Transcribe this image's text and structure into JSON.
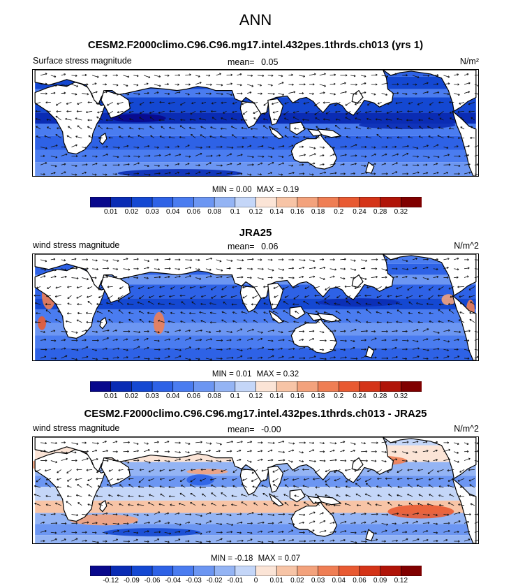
{
  "title": "ANN",
  "colors": {
    "land": "#ffffff",
    "coast": "#000000",
    "arrow": "#111111"
  },
  "panels": [
    {
      "title": "CESM2.F2000climo.C96.C96.mg17.intel.432pes.1thrds.ch013 (yrs 1)",
      "left_label": "Surface stress magnitude",
      "mean_label": "mean=",
      "mean_value": "0.05",
      "units": "N/m²",
      "min_label": "MIN =",
      "min_value": "0.00",
      "max_label": "MAX =",
      "max_value": "0.19",
      "colorbar_ticks": [
        "0.01",
        "0.02",
        "0.03",
        "0.04",
        "0.06",
        "0.08",
        "0.1",
        "0.12",
        "0.14",
        "0.16",
        "0.18",
        "0.2",
        "0.24",
        "0.28",
        "0.32"
      ],
      "colorbar_colors": [
        "#08088c",
        "#0a2cb4",
        "#1448d2",
        "#2e62e6",
        "#4a7cf0",
        "#6c96f2",
        "#94b4f4",
        "#c4d6f8",
        "#fbe4d6",
        "#f7c4a6",
        "#f3a27c",
        "#ef7e54",
        "#e85a32",
        "#d43418",
        "#b01408",
        "#800000"
      ]
    },
    {
      "title": "JRA25",
      "left_label": "wind stress magnitude",
      "mean_label": "mean=",
      "mean_value": "0.06",
      "units": "N/m^2",
      "min_label": "MIN =",
      "min_value": "0.01",
      "max_label": "MAX =",
      "max_value": "0.32",
      "colorbar_ticks": [
        "0.01",
        "0.02",
        "0.03",
        "0.04",
        "0.06",
        "0.08",
        "0.1",
        "0.12",
        "0.14",
        "0.16",
        "0.18",
        "0.2",
        "0.24",
        "0.28",
        "0.32"
      ],
      "colorbar_colors": [
        "#08088c",
        "#0a2cb4",
        "#1448d2",
        "#2e62e6",
        "#4a7cf0",
        "#6c96f2",
        "#94b4f4",
        "#c4d6f8",
        "#fbe4d6",
        "#f7c4a6",
        "#f3a27c",
        "#ef7e54",
        "#e85a32",
        "#d43418",
        "#b01408",
        "#800000"
      ]
    },
    {
      "title": "CESM2.F2000climo.C96.C96.mg17.intel.432pes.1thrds.ch013 - JRA25",
      "left_label": "wind stress magnitude",
      "mean_label": "mean=",
      "mean_value": "-0.00",
      "units": "N/m^2",
      "min_label": "MIN =",
      "min_value": "-0.18",
      "max_label": "MAX =",
      "max_value": "0.07",
      "colorbar_ticks": [
        "-0.12",
        "-0.09",
        "-0.06",
        "-0.04",
        "-0.03",
        "-0.02",
        "-0.01",
        "0",
        "0.01",
        "0.02",
        "0.03",
        "0.04",
        "0.06",
        "0.09",
        "0.12"
      ],
      "colorbar_colors": [
        "#08088c",
        "#0a2cb4",
        "#1448d2",
        "#2e62e6",
        "#4a7cf0",
        "#6c96f2",
        "#94b4f4",
        "#c4d6f8",
        "#fbe4d6",
        "#f7c4a6",
        "#f3a27c",
        "#ef7e54",
        "#e85a32",
        "#d43418",
        "#b01408",
        "#800000"
      ]
    }
  ],
  "chart_data": [
    {
      "type": "heatmap",
      "title": "CESM2.F2000climo.C96.C96.mg17.intel.432pes.1thrds.ch013 (yrs 1)",
      "variable": "Surface stress magnitude",
      "units": "N/m²",
      "mean": 0.05,
      "min": 0.0,
      "max": 0.19,
      "levels": [
        0.01,
        0.02,
        0.03,
        0.04,
        0.06,
        0.08,
        0.1,
        0.12,
        0.14,
        0.16,
        0.18,
        0.2,
        0.24,
        0.28,
        0.32
      ],
      "overlay": "wind stress vectors",
      "projection": "cylindrical equidistant, 0E-360E, 60S-60N, Pacific-centered on Greenwich-left"
    },
    {
      "type": "heatmap",
      "title": "JRA25",
      "variable": "wind stress magnitude",
      "units": "N/m^2",
      "mean": 0.06,
      "min": 0.01,
      "max": 0.32,
      "levels": [
        0.01,
        0.02,
        0.03,
        0.04,
        0.06,
        0.08,
        0.1,
        0.12,
        0.14,
        0.16,
        0.18,
        0.2,
        0.24,
        0.28,
        0.32
      ],
      "overlay": "wind stress vectors"
    },
    {
      "type": "heatmap",
      "title": "CESM2.F2000climo.C96.C96.mg17.intel.432pes.1thrds.ch013 - JRA25",
      "variable": "wind stress magnitude",
      "units": "N/m^2",
      "mean": -0.0,
      "min": -0.18,
      "max": 0.07,
      "levels": [
        -0.12,
        -0.09,
        -0.06,
        -0.04,
        -0.03,
        -0.02,
        -0.01,
        0,
        0.01,
        0.02,
        0.03,
        0.04,
        0.06,
        0.09,
        0.12
      ],
      "overlay": "wind stress difference vectors"
    }
  ]
}
